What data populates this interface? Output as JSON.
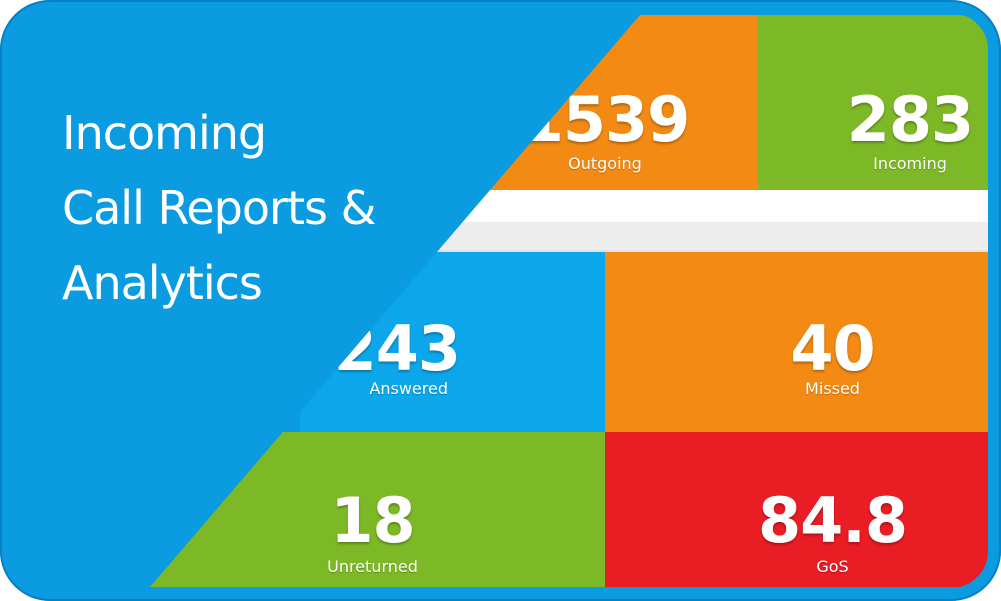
{
  "headline": {
    "line1": "Incoming",
    "line2": "Call Reports &",
    "line3": "Analytics"
  },
  "tiles": {
    "outgoing": {
      "value": "1539",
      "label": "Outgoing",
      "color": "#f28a14"
    },
    "incoming": {
      "value": "283",
      "label": "Incoming",
      "color": "#7db827"
    },
    "answered": {
      "value": "243",
      "label": "Answered",
      "color": "#0ca7ea"
    },
    "missed": {
      "value": "40",
      "label": "Missed",
      "color": "#f28a14"
    },
    "unreturned": {
      "value": "18",
      "label": "Unreturned",
      "color": "#7db827"
    },
    "gos": {
      "value": "84.8",
      "label": "GoS",
      "color": "#ea1c24"
    }
  },
  "colors": {
    "brand_blue": "#0a9be0"
  }
}
